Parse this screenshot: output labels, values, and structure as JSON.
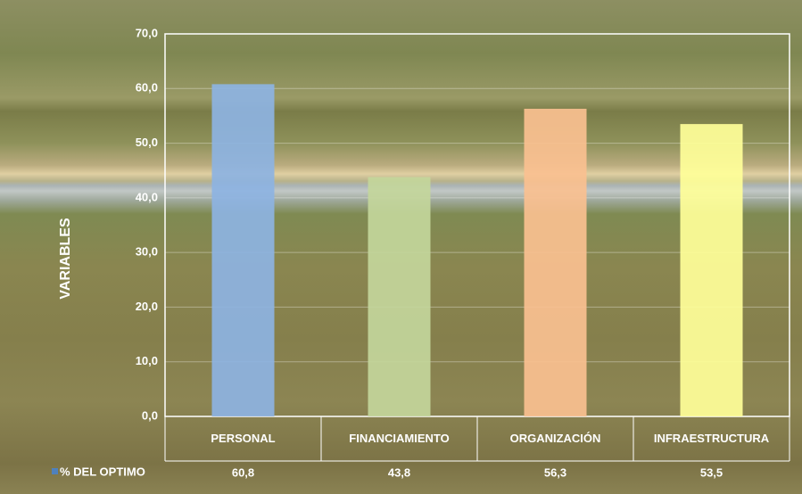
{
  "chart_data": {
    "type": "bar",
    "y_label": "VARIABLES",
    "categories": [
      "PERSONAL",
      "FINANCIAMIENTO",
      "ORGANIZACIÓN",
      "INFRAESTRUCTURA"
    ],
    "series": [
      {
        "name": "% DEL OPTIMO",
        "color": "#4f81bd",
        "colors": [
          "#8db3e2",
          "#c3d69b",
          "#fac090",
          "#ffff99"
        ],
        "values": [
          60.8,
          43.8,
          56.3,
          53.5
        ],
        "value_labels": [
          "60,8",
          "43,8",
          "56,3",
          "53,5"
        ]
      }
    ],
    "ylim": [
      0,
      70
    ],
    "yticks": [
      {
        "value": 0,
        "label": "0,0"
      },
      {
        "value": 10,
        "label": "10,0"
      },
      {
        "value": 20,
        "label": "20,0"
      },
      {
        "value": 30,
        "label": "30,0"
      },
      {
        "value": 40,
        "label": "40,0"
      },
      {
        "value": 50,
        "label": "50,0"
      },
      {
        "value": 60,
        "label": "60,0"
      },
      {
        "value": 70,
        "label": "70,0"
      }
    ],
    "grid": true
  }
}
